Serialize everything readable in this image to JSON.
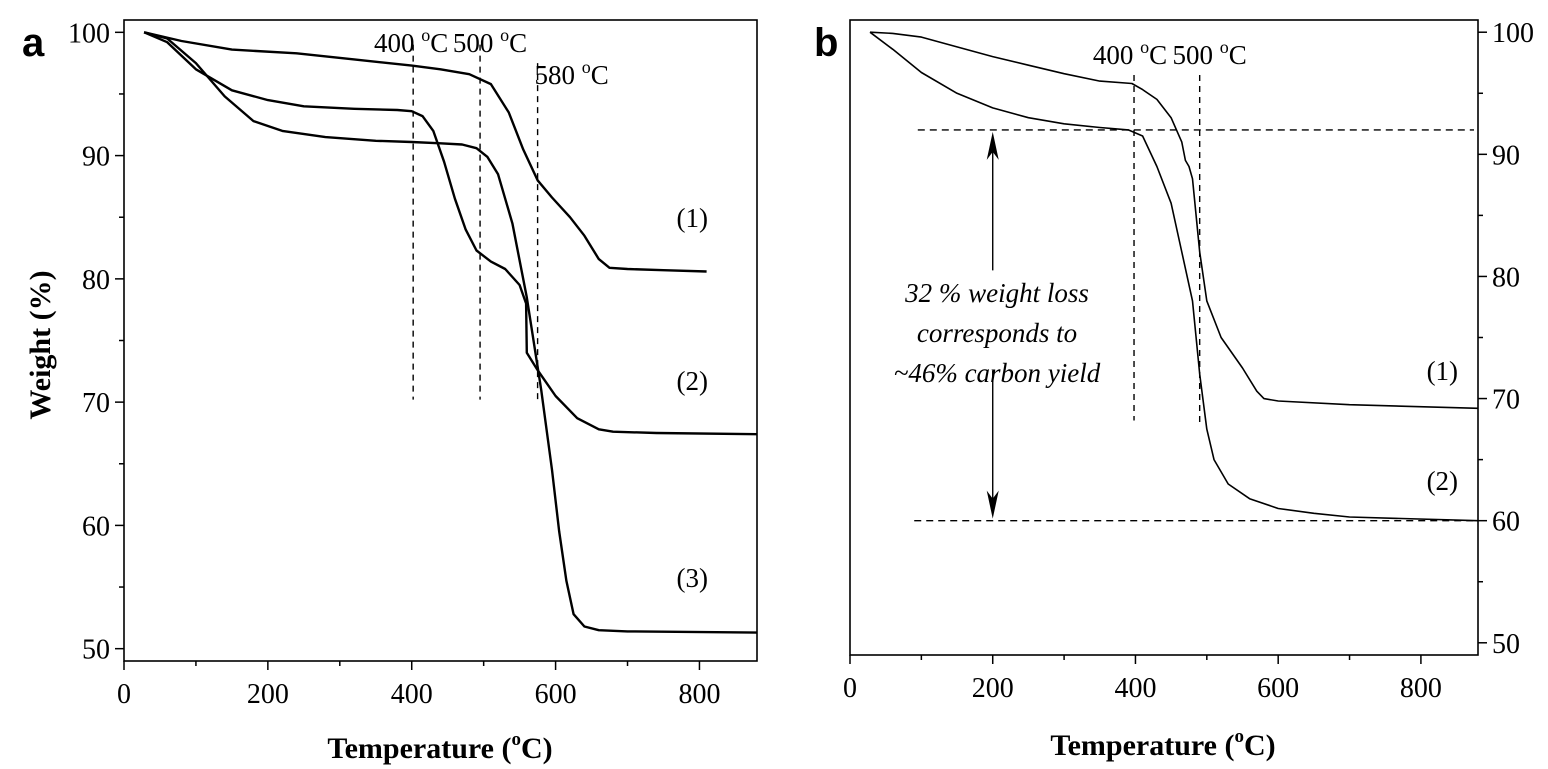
{
  "chart_data": [
    {
      "panel": "a",
      "type": "line",
      "xlabel": "Temperature (",
      "xlabel_unit": "o",
      "xlabel_end": "C)",
      "ylabel": "Weight (%)",
      "xlim": [
        0,
        880
      ],
      "ylim": [
        49,
        101
      ],
      "x_ticks": [
        "0",
        "200",
        "400",
        "600",
        "800"
      ],
      "y_ticks": [
        "50",
        "60",
        "70",
        "80",
        "90",
        "100"
      ],
      "grid": false,
      "vlines": [
        {
          "x": 402,
          "label": "400",
          "unit": "o",
          "suffix": "C"
        },
        {
          "x": 495,
          "label": "500",
          "unit": "o",
          "suffix": "C"
        },
        {
          "x": 575,
          "label": "580",
          "unit": "o",
          "suffix": "C"
        }
      ],
      "series": [
        {
          "name": "(1)",
          "x": [
            28,
            80,
            150,
            240,
            320,
            400,
            440,
            480,
            510,
            535,
            555,
            575,
            595,
            620,
            640,
            660,
            675,
            700,
            750,
            810
          ],
          "y": [
            100,
            99.3,
            98.6,
            98.3,
            97.8,
            97.3,
            97.0,
            96.6,
            95.8,
            93.5,
            90.5,
            88.0,
            86.6,
            85.0,
            83.5,
            81.6,
            80.9,
            80.8,
            80.7,
            80.6
          ]
        },
        {
          "name": "(2)",
          "x": [
            28,
            60,
            100,
            150,
            200,
            250,
            320,
            380,
            400,
            415,
            430,
            445,
            460,
            475,
            490,
            510,
            530,
            550,
            559,
            560,
            575,
            600,
            630,
            660,
            680,
            740,
            880
          ],
          "y": [
            100,
            99.2,
            97.0,
            95.3,
            94.5,
            94.0,
            93.8,
            93.7,
            93.6,
            93.2,
            92.0,
            89.5,
            86.5,
            84.0,
            82.3,
            81.4,
            80.8,
            79.5,
            78.0,
            74.0,
            72.6,
            70.5,
            68.7,
            67.8,
            67.6,
            67.5,
            67.4
          ]
        },
        {
          "name": "(3)",
          "x": [
            28,
            60,
            100,
            140,
            180,
            220,
            280,
            350,
            400,
            440,
            470,
            490,
            505,
            520,
            540,
            560,
            580,
            595,
            605,
            615,
            625,
            640,
            660,
            700,
            880
          ],
          "y": [
            100,
            99.5,
            97.5,
            94.8,
            92.8,
            92.0,
            91.5,
            91.2,
            91.1,
            91.0,
            90.9,
            90.6,
            89.9,
            88.5,
            84.5,
            78.5,
            71.0,
            64.5,
            59.5,
            55.5,
            52.8,
            51.8,
            51.5,
            51.4,
            51.3
          ]
        }
      ],
      "series_labels": [
        {
          "text": "(1)",
          "x": 790,
          "y": 84.2
        },
        {
          "text": "(2)",
          "x": 790,
          "y": 71.0
        },
        {
          "text": "(3)",
          "x": 790,
          "y": 55.0
        }
      ]
    },
    {
      "panel": "b",
      "type": "line",
      "xlabel": "Temperature (",
      "xlabel_unit": "o",
      "xlabel_end": "C)",
      "ylabel": "",
      "xlim": [
        0,
        880
      ],
      "ylim": [
        49,
        101
      ],
      "x_ticks": [
        "0",
        "200",
        "400",
        "600",
        "800"
      ],
      "y_ticks": [
        "50",
        "60",
        "70",
        "80",
        "90",
        "100"
      ],
      "y_axis_side": "right",
      "grid": false,
      "vlines": [
        {
          "x": 398,
          "label": "400",
          "unit": "o",
          "suffix": "C"
        },
        {
          "x": 490,
          "label": "500",
          "unit": "o",
          "suffix": "C"
        }
      ],
      "hlines": [
        92,
        60
      ],
      "annotation_lines": [
        "32 % weight loss",
        "corresponds to",
        "~46% carbon yield"
      ],
      "series": [
        {
          "name": "(1)",
          "x": [
            28,
            60,
            100,
            150,
            200,
            250,
            300,
            350,
            395,
            410,
            430,
            450,
            465,
            470,
            475,
            480,
            490,
            500,
            520,
            550,
            570,
            580,
            600,
            700,
            880
          ],
          "y": [
            100,
            99.9,
            99.6,
            98.8,
            98.0,
            97.3,
            96.6,
            96.0,
            95.8,
            95.3,
            94.5,
            93.0,
            91.0,
            89.5,
            89.0,
            88.0,
            82.0,
            78.0,
            75.0,
            72.5,
            70.6,
            70.0,
            69.8,
            69.5,
            69.2
          ]
        },
        {
          "name": "(2)",
          "x": [
            28,
            60,
            100,
            150,
            200,
            250,
            300,
            350,
            390,
            410,
            430,
            450,
            465,
            480,
            490,
            500,
            510,
            530,
            560,
            600,
            650,
            700,
            880
          ],
          "y": [
            100,
            98.6,
            96.7,
            95.0,
            93.8,
            93.0,
            92.5,
            92.2,
            92.0,
            91.5,
            89.0,
            86.0,
            82.0,
            78.0,
            72.0,
            67.5,
            65.0,
            63.0,
            61.8,
            61.0,
            60.6,
            60.3,
            60.0
          ]
        }
      ],
      "series_labels": [
        {
          "text": "(1)",
          "x": 830,
          "y": 71.5
        },
        {
          "text": "(2)",
          "x": 830,
          "y": 62.5
        }
      ]
    }
  ],
  "panel_letters": [
    "a",
    "b"
  ]
}
